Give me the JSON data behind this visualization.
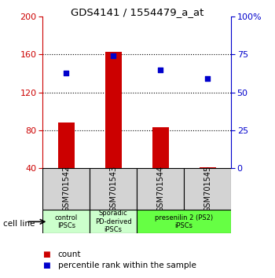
{
  "title": "GDS4141 / 1554479_a_at",
  "samples": [
    "GSM701542",
    "GSM701543",
    "GSM701544",
    "GSM701545"
  ],
  "bar_values": [
    88,
    163,
    83,
    41
  ],
  "percentile_values": [
    63,
    74,
    65,
    59
  ],
  "bar_color": "#cc0000",
  "dot_color": "#0000cc",
  "ylim_left": [
    40,
    200
  ],
  "ylim_right": [
    0,
    100
  ],
  "yticks_left": [
    40,
    80,
    120,
    160,
    200
  ],
  "yticks_right": [
    0,
    25,
    50,
    75,
    100
  ],
  "yticklabels_right": [
    "0",
    "25",
    "50",
    "75",
    "100%"
  ],
  "group_info": [
    {
      "span": [
        0,
        0
      ],
      "color": "#ccffcc",
      "text": "control\nIPSCs"
    },
    {
      "span": [
        1,
        1
      ],
      "color": "#ccffcc",
      "text": "Sporadic\nPD-derived\niPSCs"
    },
    {
      "span": [
        2,
        3
      ],
      "color": "#66ff44",
      "text": "presenilin 2 (PS2)\niPSCs"
    }
  ],
  "bar_width": 0.35,
  "left_axis_color": "#cc0000",
  "right_axis_color": "#0000cc",
  "bg_color": "#ffffff"
}
